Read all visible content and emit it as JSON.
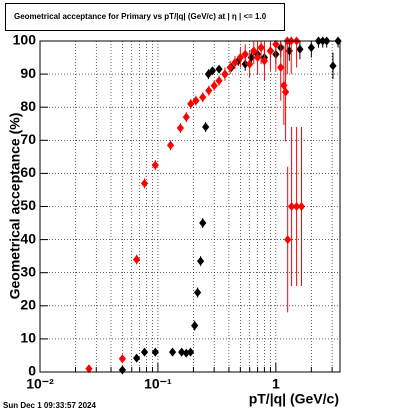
{
  "chart_data": {
    "type": "scatter",
    "title": "Geometrical acceptance for Primary vs pT/|q| (GeV/c) at |  η  | <= 1.0",
    "x_label": "pT/|q| (GeV/c)",
    "y_label": "Geometrical acceptance (%)",
    "footer": "Sun Dec  1 09:33:57 2024",
    "x_log": true,
    "grid": true,
    "xlim": [
      0.01,
      3.5
    ],
    "ylim": [
      0,
      100
    ],
    "xticks": [
      {
        "value": 0.01,
        "label": "10⁻²"
      },
      {
        "value": 0.1,
        "label": "10⁻¹"
      },
      1
    ],
    "xminorticks": [
      0.02,
      0.03,
      0.04,
      0.05,
      0.06,
      0.07,
      0.08,
      0.09,
      0.2,
      0.3,
      0.4,
      0.5,
      0.6,
      0.7,
      0.8,
      0.9,
      2,
      3
    ],
    "yticks": [
      0,
      10,
      20,
      30,
      40,
      50,
      60,
      70,
      80,
      90,
      100
    ],
    "series": [
      {
        "color": "#000000",
        "x": [
          0.05,
          0.066,
          0.077,
          0.095,
          0.133,
          0.159,
          0.174,
          0.189,
          0.205,
          0.217,
          0.23,
          0.24,
          0.254,
          0.268,
          0.29,
          0.33,
          0.37,
          0.42,
          0.48,
          0.55,
          0.62,
          0.7,
          0.8,
          0.9,
          1.0,
          1.1,
          1.3,
          1.6,
          2.0,
          2.3,
          2.5,
          2.7,
          3.05,
          3.37
        ],
        "values": [
          0.6,
          4.2,
          6,
          6,
          6,
          6,
          5.7,
          6,
          14,
          24,
          33.5,
          45,
          74,
          90,
          91,
          91.5,
          90,
          92,
          94,
          93,
          95,
          96,
          95,
          97,
          96,
          98,
          97,
          97.5,
          98,
          100,
          100,
          100,
          92.5,
          100
        ],
        "errors": [
          0.5,
          1,
          1,
          1,
          1,
          1,
          1,
          1,
          1.5,
          1.5,
          1.5,
          1.5,
          1.5,
          1.5,
          1,
          1,
          1,
          1,
          1.5,
          2,
          2,
          2,
          2.5,
          2.5,
          3,
          3,
          3,
          3,
          3,
          2,
          2,
          2,
          4,
          2
        ]
      },
      {
        "color": "#ff0000",
        "x": [
          0.026,
          0.05,
          0.066,
          0.077,
          0.095,
          0.128,
          0.155,
          0.174,
          0.19,
          0.21,
          0.24,
          0.27,
          0.3,
          0.33,
          0.37,
          0.41,
          0.45,
          0.5,
          0.55,
          0.6,
          0.65,
          0.7,
          0.75,
          0.8,
          0.9,
          1.0,
          1.1,
          1.17,
          1.21,
          1.26,
          1.36,
          1.5,
          1.65,
          1.25,
          1.35,
          1.5
        ],
        "values": [
          1,
          4,
          34,
          57,
          62.5,
          68.5,
          73.7,
          77,
          81,
          82,
          83,
          85,
          86.5,
          88,
          90,
          92,
          93.5,
          95,
          96,
          93,
          97,
          95,
          98,
          94,
          97,
          99,
          92,
          86.6,
          84.6,
          40,
          50,
          50,
          50,
          100,
          100,
          100
        ],
        "errors": [
          0.5,
          1,
          1.5,
          1.5,
          1.5,
          1.5,
          1.5,
          1.5,
          1.5,
          1.5,
          1.5,
          1.5,
          1.5,
          1.5,
          2,
          2,
          2,
          3,
          3,
          4,
          4,
          5,
          5,
          6,
          6,
          8,
          10,
          12,
          15,
          22,
          24,
          24,
          24,
          10,
          10,
          8
        ]
      }
    ]
  }
}
